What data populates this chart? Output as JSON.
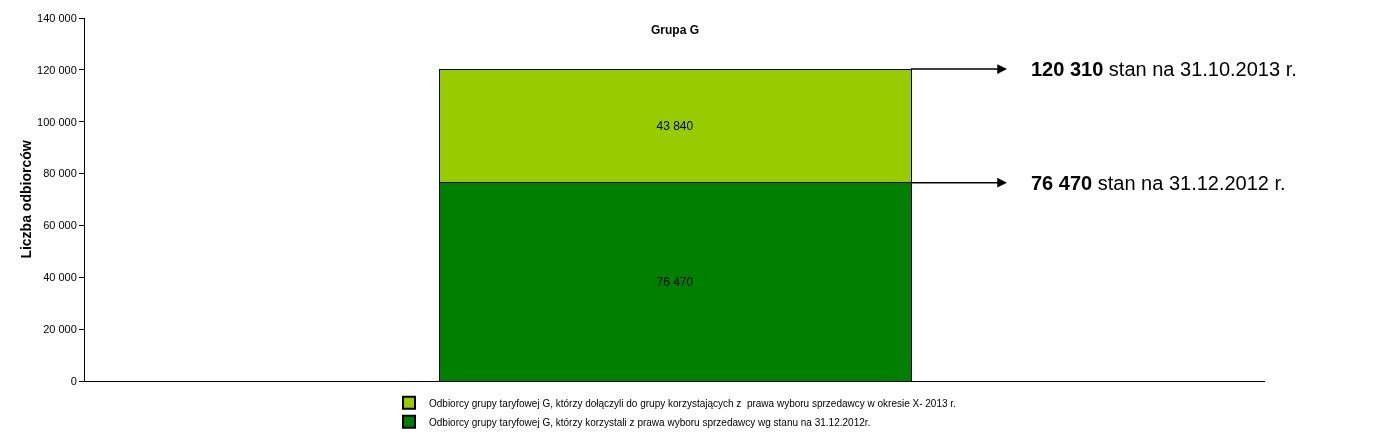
{
  "chart_data": {
    "type": "bar",
    "title": "Grupa G",
    "ylabel": "Liczba odbiorców",
    "categories": [
      null
    ],
    "stacked": true,
    "series": [
      {
        "name": "Odbiorcy grupy taryfowej G, którzy korzystali z prawa wyboru sprzedawcy wg stanu na 31.12.2012r.",
        "color": "#008000",
        "values": [
          76470
        ],
        "value_labels": [
          "76 470"
        ]
      },
      {
        "name": "Odbiorcy grupy taryfowej G, którzy dołączyli do grupy korzystających z  prawa wyboru sprzedawcy w okresie X- 2013 r.",
        "color": "#99cc00",
        "values": [
          43840
        ],
        "value_labels": [
          "43 840"
        ]
      }
    ],
    "annotations": [
      "120 310 stan na 31.10.2013 r.",
      "76 470 stan na 31.12.2012 r."
    ],
    "ylim": [
      0,
      140000
    ],
    "yticks": [
      0,
      {
        "value": 20000,
        "label": "20 000"
      },
      {
        "value": 40000,
        "label": "40 000"
      },
      {
        "value": 60000,
        "label": "60 000"
      },
      {
        "value": 80000,
        "label": "80 000"
      },
      {
        "value": 100000,
        "label": "100 000"
      },
      {
        "value": 120000,
        "label": "120 000"
      },
      {
        "value": 140000,
        "label": "140 000"
      }
    ],
    "legend": "bottom"
  }
}
